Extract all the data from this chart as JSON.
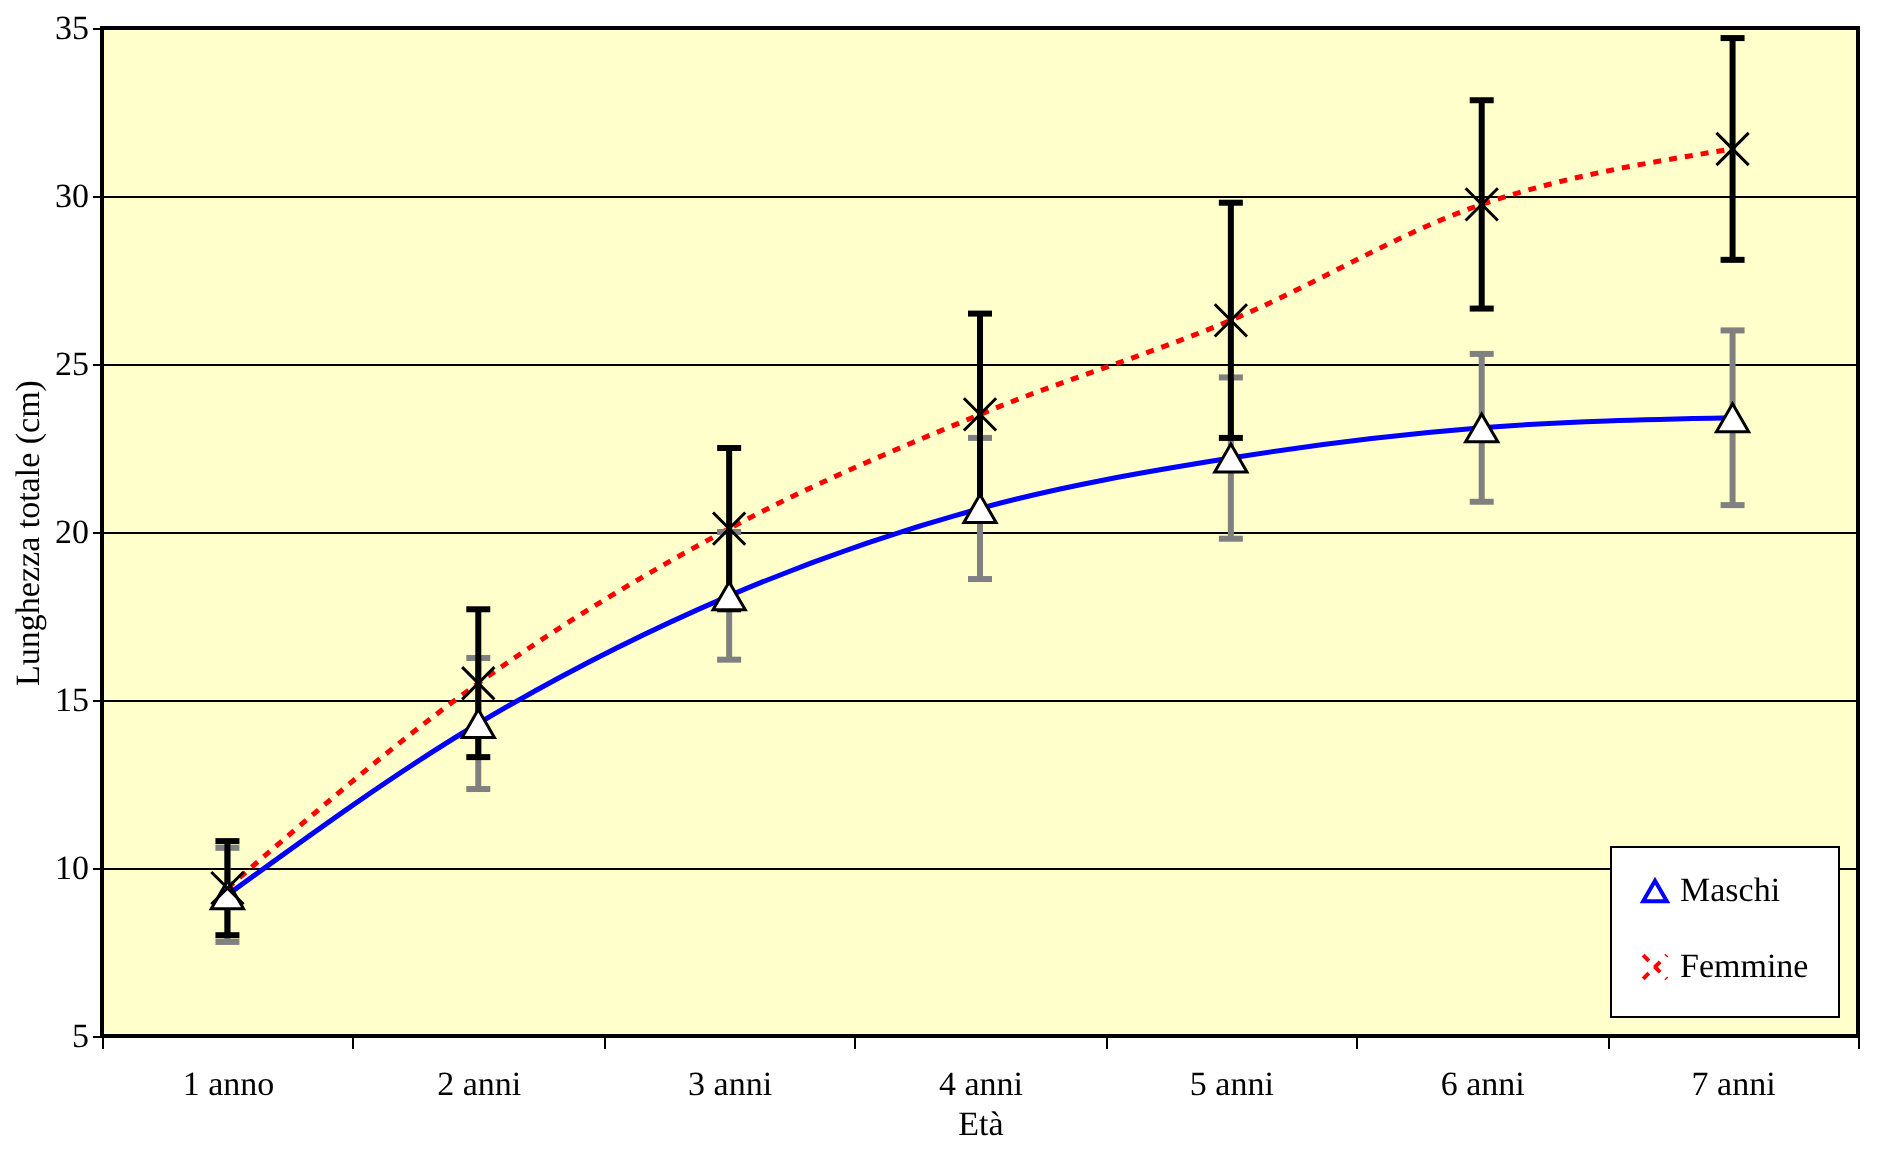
{
  "chart_data": {
    "type": "line",
    "xlabel": "Età",
    "ylabel": "Lunghezza totale  (cm)",
    "categories": [
      "1 anno",
      "2 anni",
      "3 anni",
      "4 anni",
      "5 anni",
      "6 anni",
      "7 anni"
    ],
    "series": [
      {
        "name": "Maschi",
        "color": "#0000ff",
        "marker": "triangle",
        "line_style": "solid",
        "values": [
          9.2,
          14.3,
          18.1,
          20.7,
          22.2,
          23.1,
          23.4
        ],
        "errors": [
          1.4,
          1.95,
          1.9,
          2.1,
          2.4,
          2.2,
          2.6
        ]
      },
      {
        "name": "Femmine",
        "color": "#ff0000",
        "marker": "cross",
        "line_style": "dashed",
        "values": [
          9.4,
          15.5,
          20.1,
          23.5,
          26.3,
          29.75,
          31.4
        ],
        "errors": [
          1.4,
          2.2,
          2.4,
          3.0,
          3.5,
          3.1,
          3.3
        ]
      }
    ],
    "ylim": [
      5,
      35
    ],
    "yticks": [
      5,
      10,
      15,
      20,
      25,
      30,
      35
    ],
    "grid": "y",
    "legend": "bottom right"
  }
}
